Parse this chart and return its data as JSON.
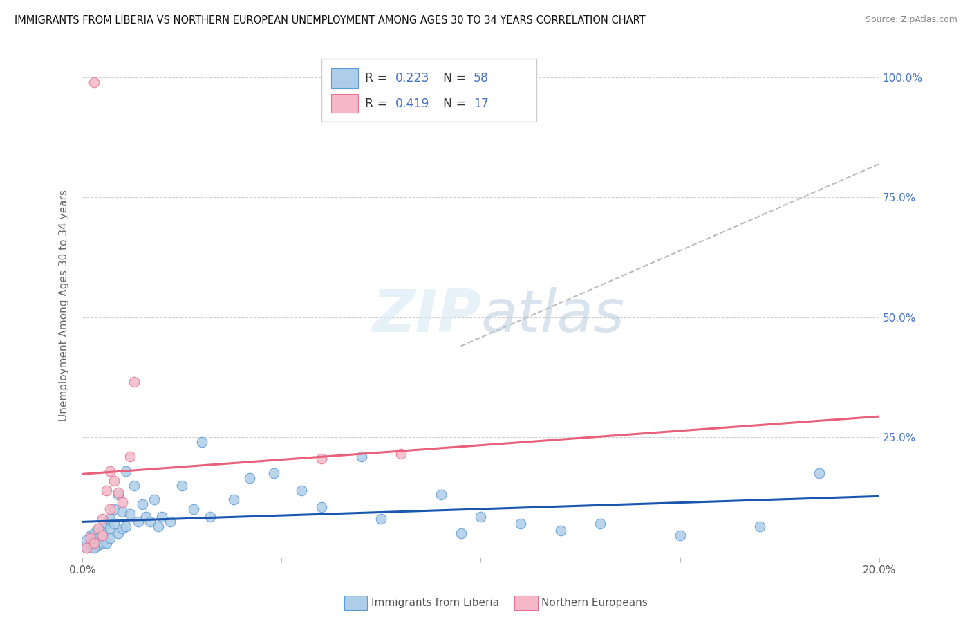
{
  "title": "IMMIGRANTS FROM LIBERIA VS NORTHERN EUROPEAN UNEMPLOYMENT AMONG AGES 30 TO 34 YEARS CORRELATION CHART",
  "source": "Source: ZipAtlas.com",
  "ylabel": "Unemployment Among Ages 30 to 34 years",
  "x_min": 0.0,
  "x_max": 0.2,
  "y_min": 0.0,
  "y_max": 1.05,
  "x_ticks": [
    0.0,
    0.05,
    0.1,
    0.15,
    0.2
  ],
  "x_tick_labels": [
    "0.0%",
    "",
    "",
    "",
    "20.0%"
  ],
  "y_ticks_grid": [
    0.0,
    0.25,
    0.5,
    0.75,
    1.0
  ],
  "y_tick_labels_right": [
    "",
    "25.0%",
    "50.0%",
    "75.0%",
    "100.0%"
  ],
  "legend_r1": "0.223",
  "legend_n1": "58",
  "legend_r2": "0.419",
  "legend_n2": "17",
  "blue_color": "#aecde8",
  "blue_edge_color": "#5b9bd5",
  "pink_color": "#f4b8c8",
  "pink_edge_color": "#e87090",
  "trend_blue_color": "#1a56b0",
  "trend_pink_color": "#e8607a",
  "trend_dashed_color": "#bbbbbb",
  "watermark_color": "#dce8f5",
  "accent_color": "#4472c4",
  "legend_label_blue": "Immigrants from Liberia",
  "legend_label_pink": "Northern Europeans",
  "blue_x": [
    0.001,
    0.001,
    0.002,
    0.002,
    0.002,
    0.003,
    0.003,
    0.003,
    0.004,
    0.004,
    0.004,
    0.005,
    0.005,
    0.005,
    0.006,
    0.006,
    0.007,
    0.007,
    0.007,
    0.008,
    0.008,
    0.009,
    0.009,
    0.01,
    0.01,
    0.011,
    0.011,
    0.012,
    0.013,
    0.014,
    0.015,
    0.016,
    0.017,
    0.018,
    0.019,
    0.02,
    0.022,
    0.025,
    0.028,
    0.03,
    0.032,
    0.038,
    0.042,
    0.048,
    0.055,
    0.06,
    0.07,
    0.075,
    0.09,
    0.095,
    0.1,
    0.11,
    0.12,
    0.13,
    0.15,
    0.17,
    0.185,
    0.003
  ],
  "blue_y": [
    0.02,
    0.035,
    0.025,
    0.045,
    0.03,
    0.02,
    0.05,
    0.035,
    0.025,
    0.06,
    0.04,
    0.03,
    0.055,
    0.045,
    0.07,
    0.03,
    0.08,
    0.06,
    0.04,
    0.1,
    0.07,
    0.13,
    0.05,
    0.095,
    0.06,
    0.18,
    0.065,
    0.09,
    0.15,
    0.075,
    0.11,
    0.085,
    0.075,
    0.12,
    0.065,
    0.085,
    0.075,
    0.15,
    0.1,
    0.24,
    0.085,
    0.12,
    0.165,
    0.175,
    0.14,
    0.105,
    0.21,
    0.08,
    0.13,
    0.05,
    0.085,
    0.07,
    0.055,
    0.07,
    0.045,
    0.065,
    0.175,
    0.02
  ],
  "pink_x": [
    0.001,
    0.002,
    0.003,
    0.004,
    0.005,
    0.005,
    0.006,
    0.007,
    0.007,
    0.008,
    0.009,
    0.01,
    0.012,
    0.013,
    0.06,
    0.08,
    0.003
  ],
  "pink_y": [
    0.02,
    0.04,
    0.03,
    0.06,
    0.045,
    0.08,
    0.14,
    0.1,
    0.18,
    0.16,
    0.135,
    0.115,
    0.21,
    0.365,
    0.205,
    0.215,
    0.99
  ]
}
